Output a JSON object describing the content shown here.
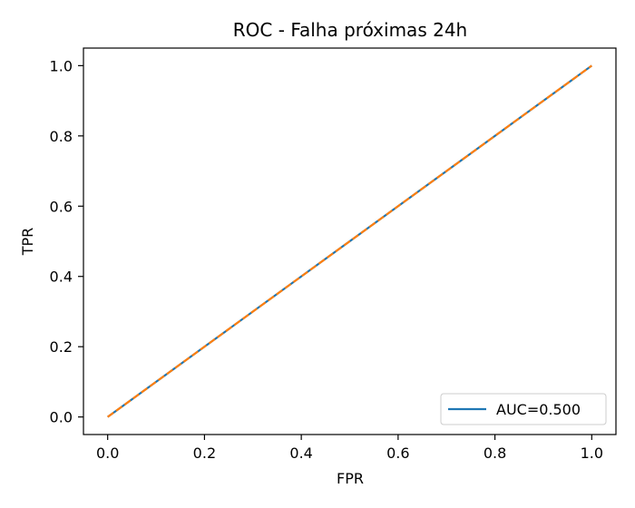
{
  "chart_data": {
    "type": "line",
    "title": "ROC - Falha próximas 24h",
    "xlabel": "FPR",
    "ylabel": "TPR",
    "xlim": [
      -0.05,
      1.05
    ],
    "ylim": [
      -0.05,
      1.05
    ],
    "xticks": [
      0.0,
      0.2,
      0.4,
      0.6,
      0.8,
      1.0
    ],
    "yticks": [
      0.0,
      0.2,
      0.4,
      0.6,
      0.8,
      1.0
    ],
    "xtick_labels": [
      "0.0",
      "0.2",
      "0.4",
      "0.6",
      "0.8",
      "1.0"
    ],
    "ytick_labels": [
      "0.0",
      "0.2",
      "0.4",
      "0.6",
      "0.8",
      "1.0"
    ],
    "grid": false,
    "legend_position": "lower-right",
    "series": [
      {
        "name": "AUC=0.500",
        "x": [
          0,
          1
        ],
        "y": [
          0,
          1
        ],
        "color": "#1f77b4",
        "style": "solid"
      },
      {
        "x": [
          0,
          1
        ],
        "y": [
          0,
          1
        ],
        "color": "#ff7f0e",
        "style": "dashed"
      }
    ]
  }
}
